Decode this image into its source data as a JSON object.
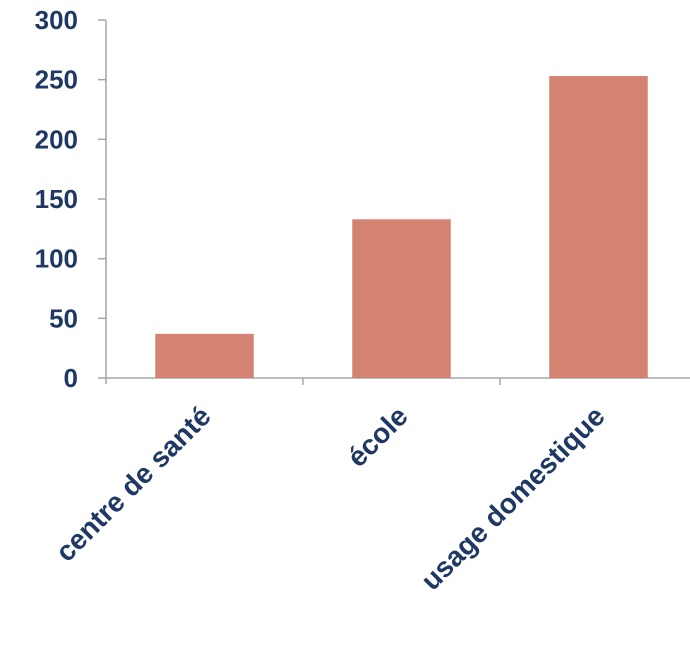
{
  "chart_data": {
    "type": "bar",
    "categories": [
      "centre de santé",
      "école",
      "usage domestique"
    ],
    "values": [
      37,
      133,
      253
    ],
    "ylim": [
      0,
      300
    ],
    "yticks": [
      0,
      50,
      100,
      150,
      200,
      250,
      300
    ],
    "grid": false,
    "legend": "none",
    "bar_color": "#d48271",
    "label_color": "#1f3864",
    "axis_color": "#a6a6a6"
  }
}
